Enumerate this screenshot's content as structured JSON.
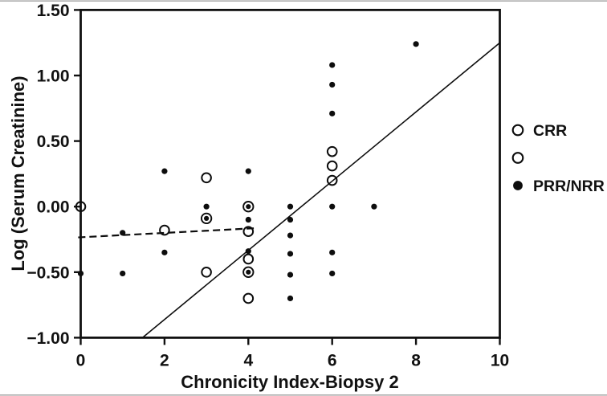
{
  "figure": {
    "background": "#ffffff",
    "axis_color": "#111111",
    "marker_color": "#0d0d0d",
    "edge_rule_color": "#adadad"
  },
  "chart_data": {
    "type": "scatter",
    "title": "",
    "xlabel": "Chronicity Index-Biopsy 2",
    "ylabel": "Log (Serum Creatinine)",
    "xlim": [
      0,
      10
    ],
    "ylim": [
      -1.0,
      1.5
    ],
    "grid": false,
    "x_ticks": [
      0,
      2,
      4,
      6,
      8,
      10
    ],
    "x_tick_labels": [
      "0",
      "2",
      "4",
      "6",
      "8",
      "10"
    ],
    "y_ticks": [
      1.5,
      1.0,
      0.5,
      0.0,
      -0.5,
      -1.0
    ],
    "y_tick_labels": [
      "1.50",
      "1.00",
      "0.50",
      "0.00",
      "−0.50",
      "−1.00"
    ],
    "series": [
      {
        "name": "CRR",
        "marker": "open-circle",
        "points": [
          [
            0,
            0.0
          ],
          [
            2,
            -0.18
          ],
          [
            3,
            0.22
          ],
          [
            3,
            -0.5
          ],
          [
            4,
            -0.19
          ],
          [
            4,
            -0.4
          ],
          [
            4,
            -0.7
          ],
          [
            6,
            0.42
          ],
          [
            6,
            0.31
          ],
          [
            6,
            0.2
          ]
        ]
      },
      {
        "name": "CRR-PRR-overlap",
        "marker": "circled-dot",
        "points": [
          [
            3,
            -0.09
          ],
          [
            4,
            0.0
          ],
          [
            4,
            -0.5
          ]
        ]
      },
      {
        "name": "PRR/NRR",
        "marker": "filled-circle",
        "points": [
          [
            0,
            -0.51
          ],
          [
            1,
            -0.2
          ],
          [
            1,
            -0.51
          ],
          [
            2,
            0.27
          ],
          [
            2,
            -0.35
          ],
          [
            3,
            0.0
          ],
          [
            4,
            0.27
          ],
          [
            4,
            -0.1
          ],
          [
            4,
            -0.34
          ],
          [
            5,
            0.0
          ],
          [
            5,
            -0.1
          ],
          [
            5,
            -0.22
          ],
          [
            5,
            -0.36
          ],
          [
            5,
            -0.52
          ],
          [
            5,
            -0.7
          ],
          [
            6,
            1.08
          ],
          [
            6,
            0.93
          ],
          [
            6,
            0.71
          ],
          [
            6,
            0.0
          ],
          [
            6,
            -0.35
          ],
          [
            6,
            -0.51
          ],
          [
            7,
            0.0
          ],
          [
            8,
            1.24
          ]
        ]
      }
    ],
    "lines": [
      {
        "name": "regression-line-solid",
        "style": "solid",
        "from": [
          1.475,
          -1.0
        ],
        "to": [
          10,
          1.25
        ]
      },
      {
        "name": "regression-line-dashed",
        "style": "dashed",
        "from": [
          -0.06,
          -0.235
        ],
        "to": [
          4.15,
          -0.165
        ]
      }
    ],
    "legend": {
      "position": "right-outside",
      "items": [
        {
          "marker": "open-circle",
          "label": "CRR"
        },
        {
          "marker": "open-circle",
          "label": ""
        },
        {
          "marker": "filled-circle",
          "label": "PRR/NRR"
        }
      ]
    }
  }
}
